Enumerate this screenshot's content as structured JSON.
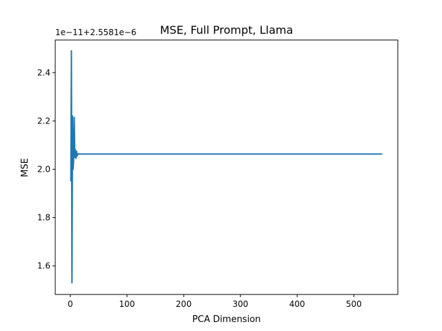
{
  "chart_data": {
    "type": "line",
    "title": "MSE, Full Prompt, Llama",
    "xlabel": "PCA Dimension",
    "ylabel": "MSE",
    "offset_text": "1e−11+2.5581e−6",
    "xlim": [
      -26.5,
      577.5
    ],
    "ylim": [
      1.482,
      2.535
    ],
    "xticks": [
      0,
      100,
      200,
      300,
      400,
      500
    ],
    "yticks": [
      1.6,
      1.8,
      2.0,
      2.2,
      2.4
    ],
    "ytick_labels": [
      "1.6",
      "1.8",
      "2.0",
      "2.2",
      "2.4"
    ],
    "grid": false,
    "color": "#1f77b4",
    "series": [
      {
        "x": [
          1,
          2,
          3,
          4,
          5,
          6,
          7,
          8,
          9,
          10,
          11,
          12,
          13,
          14,
          15,
          20,
          30,
          50,
          100,
          200,
          300,
          400,
          500,
          550
        ],
        "values": [
          1.95,
          2.49,
          1.53,
          2.22,
          2.0,
          2.04,
          2.215,
          2.05,
          2.08,
          2.045,
          2.075,
          2.055,
          2.065,
          2.062,
          2.063,
          2.063,
          2.063,
          2.063,
          2.063,
          2.063,
          2.063,
          2.063,
          2.063,
          2.063
        ]
      }
    ]
  }
}
